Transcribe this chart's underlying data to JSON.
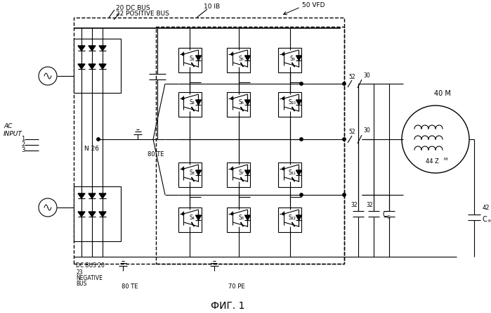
{
  "bg_color": "#ffffff",
  "lc": "#000000",
  "title": "ФИГ. 1",
  "labels": {
    "dc_bus": "20 DC BUS",
    "pos_bus": "22 POSITIVE BUS",
    "ib": "10 IB",
    "vfd": "50 VFD",
    "ac_input": "AC\nINPUT",
    "n26": "N 26",
    "te80_top": "80 TE",
    "te80_bot": "80 TE",
    "pe70": "70 PE",
    "neg_bus_num": "23",
    "neg_bus": "NEGATIVE\nBUS",
    "dc_bus20": "DC BUS 20",
    "motor": "40 M",
    "zm": "44 Z",
    "cc": "C",
    "cm_num": "42",
    "cm": "C",
    "r52": "52",
    "r30": "30",
    "r32": "32",
    "lines": [
      "1",
      "2",
      "3"
    ],
    "switches": [
      [
        "S₁",
        "S₅",
        "S₉"
      ],
      [
        "S₂",
        "S₆",
        "S₁₀"
      ],
      [
        "S₃",
        "S₇",
        "S₁₁"
      ],
      [
        "S₄",
        "S₈",
        "S₁₂"
      ]
    ]
  }
}
